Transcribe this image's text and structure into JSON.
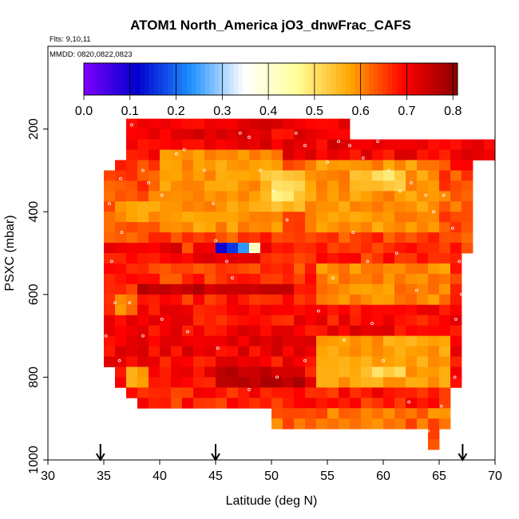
{
  "chart_data": {
    "type": "heatmap",
    "title": "ATOM1 North_America jO3_dnwFrac_CAFS",
    "annotations": [
      "Flts: 9,10,11",
      "MMDD: 0820,0822,0823"
    ],
    "xlabel": "Latitude (deg N)",
    "ylabel": "PSXC (mbar)",
    "xlim": [
      30,
      70
    ],
    "ylim": [
      1000,
      0
    ],
    "x_ticks": [
      "30",
      "35",
      "40",
      "45",
      "50",
      "55",
      "60",
      "65",
      "70"
    ],
    "y_ticks": [
      "200",
      "400",
      "600",
      "800",
      "1000"
    ],
    "colorbar": {
      "range": [
        0,
        0.81
      ],
      "ticks": [
        "0.0",
        "0.1",
        "0.2",
        "0.3",
        "0.4",
        "0.5",
        "0.6",
        "0.7",
        "0.8"
      ],
      "colors": [
        "#7f00ff",
        "#0000cd",
        "#1e90ff",
        "#ffffff",
        "#ffff99",
        "#ffa500",
        "#ff0000",
        "#8b0000"
      ]
    },
    "flight_marker_latitudes": [
      34.7,
      45.0,
      67.1
    ],
    "cell_size": {
      "lat": 1.0,
      "pressure": 25
    },
    "grid": [
      {
        "y": 175,
        "lat": [
          37,
          57
        ],
        "v": 0.72
      },
      {
        "y": 200,
        "lat": [
          37,
          57
        ],
        "v": 0.71
      },
      {
        "y": 225,
        "lat": [
          37,
          70
        ],
        "v": 0.71
      },
      {
        "y": 250,
        "lat": [
          37,
          70
        ],
        "v": 0.7
      },
      {
        "y": 275,
        "lat": [
          36,
          68
        ],
        "v": 0.66
      },
      {
        "y": 300,
        "lat": [
          35,
          68
        ],
        "v": 0.65
      },
      {
        "y": 325,
        "lat": [
          35,
          68
        ],
        "v": 0.64
      },
      {
        "y": 350,
        "lat": [
          35,
          68
        ],
        "v": 0.63
      },
      {
        "y": 375,
        "lat": [
          35,
          68
        ],
        "v": 0.63
      },
      {
        "y": 400,
        "lat": [
          35,
          68
        ],
        "v": 0.63
      },
      {
        "y": 425,
        "lat": [
          35,
          68
        ],
        "v": 0.64
      },
      {
        "y": 450,
        "lat": [
          35,
          68
        ],
        "v": 0.65
      },
      {
        "y": 475,
        "lat": [
          35,
          68
        ],
        "v": 0.67
      },
      {
        "y": 500,
        "lat": [
          35,
          67
        ],
        "v": 0.67
      },
      {
        "y": 525,
        "lat": [
          35,
          67
        ],
        "v": 0.66
      },
      {
        "y": 550,
        "lat": [
          35,
          67
        ],
        "v": 0.66
      },
      {
        "y": 575,
        "lat": [
          35,
          67
        ],
        "v": 0.67
      },
      {
        "y": 600,
        "lat": [
          35,
          67
        ],
        "v": 0.68
      },
      {
        "y": 625,
        "lat": [
          35,
          67
        ],
        "v": 0.69
      },
      {
        "y": 650,
        "lat": [
          35,
          67
        ],
        "v": 0.69
      },
      {
        "y": 675,
        "lat": [
          35,
          67
        ],
        "v": 0.7
      },
      {
        "y": 700,
        "lat": [
          35,
          67
        ],
        "v": 0.71
      },
      {
        "y": 725,
        "lat": [
          35,
          67
        ],
        "v": 0.71
      },
      {
        "y": 750,
        "lat": [
          35,
          67
        ],
        "v": 0.7
      },
      {
        "y": 775,
        "lat": [
          36,
          67
        ],
        "v": 0.7
      },
      {
        "y": 800,
        "lat": [
          36,
          67
        ],
        "v": 0.7
      },
      {
        "y": 825,
        "lat": [
          37,
          66
        ],
        "v": 0.68
      },
      {
        "y": 850,
        "lat": [
          38,
          66
        ],
        "v": 0.67
      },
      {
        "y": 875,
        "lat": [
          50,
          66
        ],
        "v": 0.62
      },
      {
        "y": 900,
        "lat": [
          50,
          66
        ],
        "v": 0.62
      },
      {
        "y": 925,
        "lat": [
          64,
          65
        ],
        "v": 0.62
      },
      {
        "y": 950,
        "lat": [
          64,
          65
        ],
        "v": 0.6
      }
    ],
    "regions": [
      {
        "lat": [
          40,
          51
        ],
        "p": [
          250,
          450
        ],
        "v": 0.59
      },
      {
        "lat": [
          49,
          53
        ],
        "p": [
          300,
          400
        ],
        "v": 0.54
      },
      {
        "lat": [
          50,
          52
        ],
        "p": [
          325,
          375
        ],
        "v": 0.5
      },
      {
        "lat": [
          53,
          65
        ],
        "p": [
          275,
          450
        ],
        "v": 0.59
      },
      {
        "lat": [
          57,
          62
        ],
        "p": [
          300,
          350
        ],
        "v": 0.54
      },
      {
        "lat": [
          59,
          61
        ],
        "p": [
          300,
          325
        ],
        "v": 0.51
      },
      {
        "lat": [
          54,
          66
        ],
        "p": [
          525,
          625
        ],
        "v": 0.6
      },
      {
        "lat": [
          54,
          66
        ],
        "p": [
          700,
          825
        ],
        "v": 0.58
      },
      {
        "lat": [
          58,
          62
        ],
        "p": [
          775,
          800
        ],
        "v": 0.52
      },
      {
        "lat": [
          36,
          41
        ],
        "p": [
          375,
          425
        ],
        "v": 0.58
      },
      {
        "lat": [
          36,
          38
        ],
        "p": [
          600,
          650
        ],
        "v": 0.6
      },
      {
        "lat": [
          37,
          39
        ],
        "p": [
          775,
          825
        ],
        "v": 0.58
      },
      {
        "lat": [
          45,
          53
        ],
        "p": [
          775,
          825
        ],
        "v": 0.76
      },
      {
        "lat": [
          35,
          42
        ],
        "p": [
          475,
          500
        ],
        "v": 0.72
      },
      {
        "lat": [
          38,
          52
        ],
        "p": [
          575,
          600
        ],
        "v": 0.75
      },
      {
        "lat": [
          43,
          49
        ],
        "p": [
          475,
          525
        ],
        "v": 0.73
      }
    ],
    "cells": [
      {
        "lat": 45,
        "p": 475,
        "v": 0.1
      },
      {
        "lat": 46,
        "p": 475,
        "v": 0.16
      },
      {
        "lat": 47,
        "p": 475,
        "v": 0.24
      },
      {
        "lat": 48,
        "p": 475,
        "v": 0.42
      },
      {
        "lat": 49,
        "p": 475,
        "v": 0.71
      }
    ],
    "flight_track": [
      [
        36.5,
        190
      ],
      [
        37.5,
        190
      ],
      [
        36.2,
        230
      ],
      [
        35.8,
        260
      ],
      [
        36.5,
        320
      ],
      [
        35.5,
        380
      ],
      [
        36.6,
        450
      ],
      [
        35.7,
        520
      ],
      [
        36.0,
        620
      ],
      [
        35.2,
        700
      ],
      [
        36.4,
        760
      ],
      [
        35.6,
        800
      ],
      [
        38.5,
        300
      ],
      [
        39.0,
        330
      ],
      [
        40.2,
        360
      ],
      [
        41.5,
        260
      ],
      [
        42.2,
        250
      ],
      [
        44.0,
        300
      ],
      [
        44.8,
        380
      ],
      [
        45.0,
        470
      ],
      [
        46.0,
        520
      ],
      [
        46.5,
        560
      ],
      [
        47.2,
        210
      ],
      [
        48.0,
        220
      ],
      [
        49.0,
        300
      ],
      [
        50.2,
        350
      ],
      [
        51.4,
        420
      ],
      [
        52.2,
        210
      ],
      [
        53.0,
        240
      ],
      [
        55.0,
        280
      ],
      [
        56.0,
        230
      ],
      [
        57.0,
        240
      ],
      [
        58.2,
        270
      ],
      [
        59.5,
        230
      ],
      [
        60.5,
        300
      ],
      [
        61.5,
        350
      ],
      [
        62.5,
        330
      ],
      [
        63.8,
        360
      ],
      [
        64.5,
        400
      ],
      [
        65.4,
        360
      ],
      [
        66.2,
        440
      ],
      [
        66.8,
        520
      ],
      [
        67.0,
        600
      ],
      [
        66.5,
        660
      ],
      [
        67.2,
        740
      ],
      [
        66.4,
        800
      ],
      [
        65.2,
        870
      ],
      [
        64.0,
        930
      ],
      [
        59.0,
        670
      ],
      [
        56.5,
        710
      ],
      [
        53.0,
        760
      ],
      [
        50.5,
        800
      ],
      [
        48.0,
        830
      ],
      [
        45.2,
        730
      ],
      [
        42.5,
        690
      ],
      [
        40.2,
        660
      ],
      [
        38.5,
        700
      ],
      [
        37.3,
        620
      ],
      [
        57.3,
        450
      ],
      [
        58.6,
        520
      ],
      [
        55.5,
        560
      ],
      [
        61.2,
        500
      ],
      [
        63.0,
        590
      ],
      [
        54.2,
        640
      ],
      [
        60.0,
        760
      ],
      [
        62.3,
        860
      ],
      [
        68.8,
        220
      ],
      [
        69.5,
        215
      ]
    ]
  }
}
